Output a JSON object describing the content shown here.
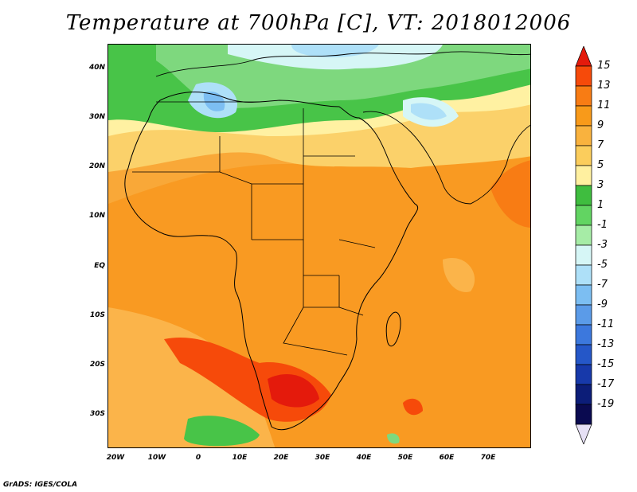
{
  "title": "Temperature at 700hPa [C], VT: 2018012006",
  "axes": {
    "y_ticks": [
      "40N",
      "30N",
      "20N",
      "10N",
      "EQ",
      "10S",
      "20S",
      "30S"
    ],
    "x_ticks": [
      "20W",
      "10W",
      "0",
      "10E",
      "20E",
      "30E",
      "40E",
      "50E",
      "60E",
      "70E"
    ],
    "lon_range": [
      -22,
      80
    ],
    "lat_range": [
      -37,
      44
    ]
  },
  "colorbar": {
    "labels": [
      "15",
      "13",
      "11",
      "9",
      "7",
      "5",
      "3",
      "1",
      "-1",
      "-3",
      "-5",
      "-7",
      "-9",
      "-11",
      "-13",
      "-15",
      "-17",
      "-19"
    ],
    "colors": [
      "#e41a0c",
      "#f64a0a",
      "#f87c14",
      "#f89a1a",
      "#f9b23e",
      "#fbcd5c",
      "#fff0a0",
      "#3fbd3f",
      "#62d462",
      "#a6eca6",
      "#d6f6f6",
      "#aee0f8",
      "#7cbef2",
      "#5b9be8",
      "#3c78dd",
      "#2557c8",
      "#1739aa",
      "#0c1d78",
      "#0a0a50",
      "#e6e0f5"
    ]
  },
  "credit": "GrADS: IGES/COLA"
}
